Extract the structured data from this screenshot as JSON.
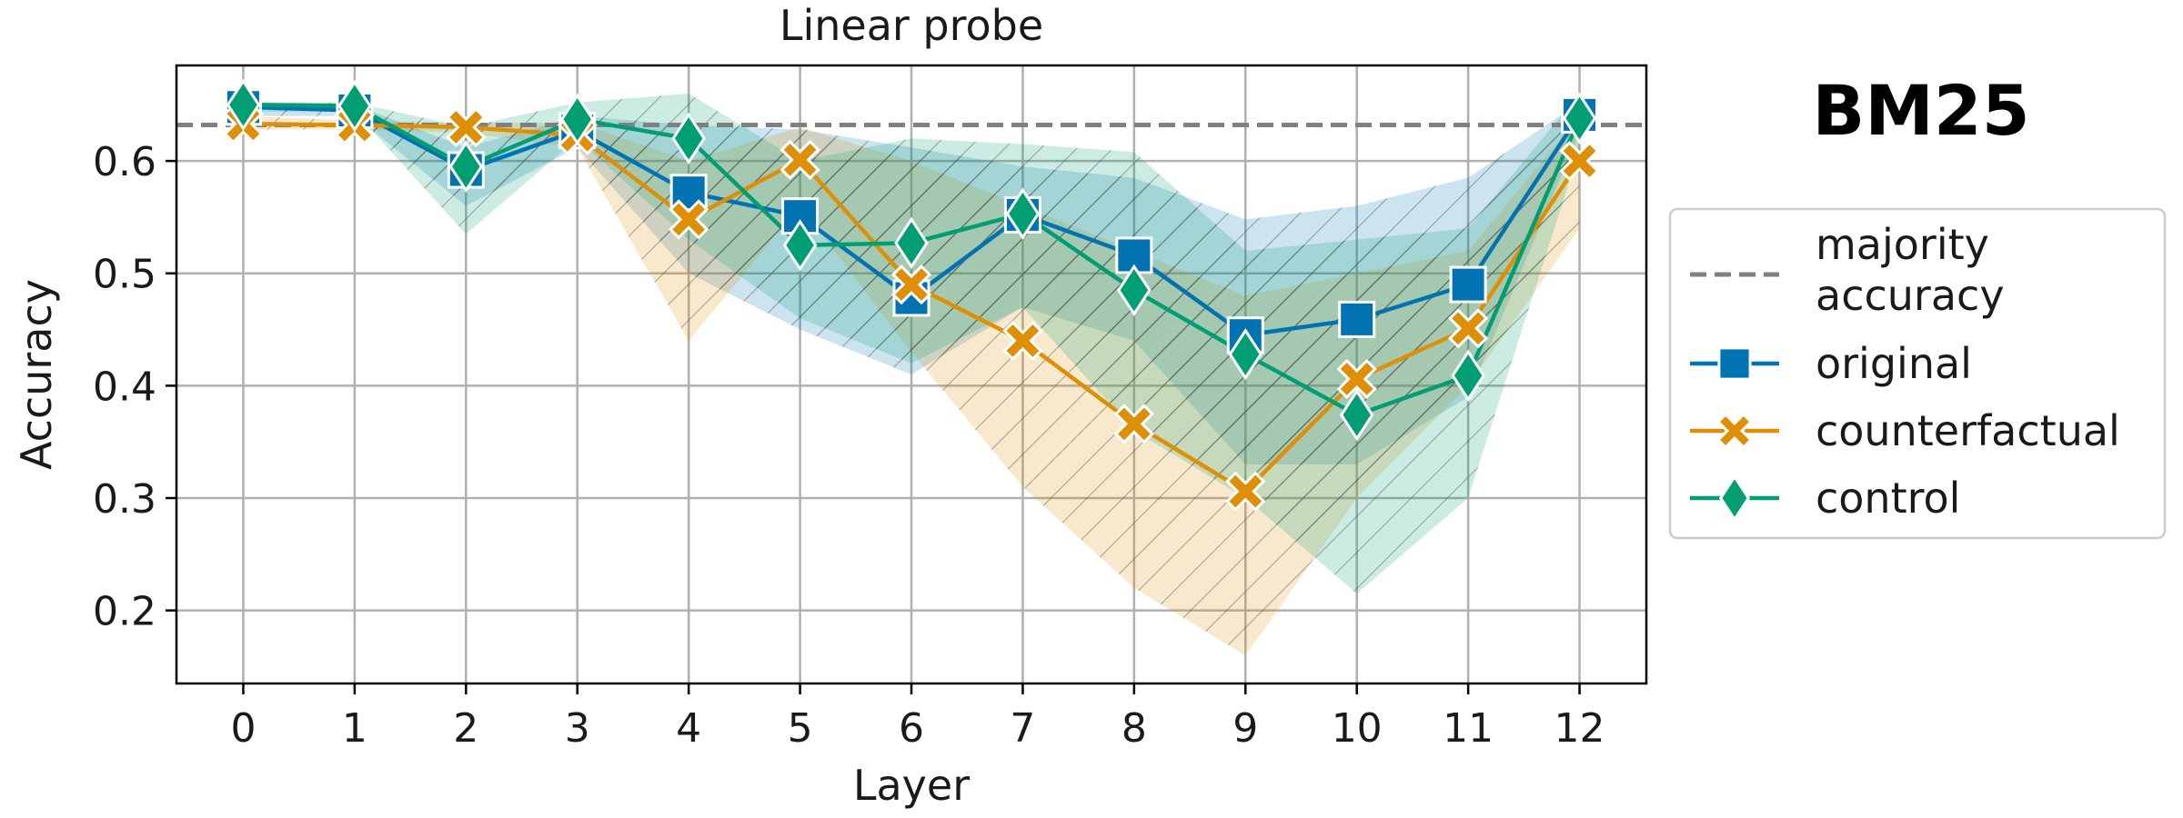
{
  "chart_data": {
    "type": "line",
    "title": "Linear probe",
    "annotation": "BM25",
    "xlabel": "Layer",
    "ylabel": "Accuracy",
    "x": [
      0,
      1,
      2,
      3,
      4,
      5,
      6,
      7,
      8,
      9,
      10,
      11,
      12
    ],
    "xlim": [
      -0.6,
      12.6
    ],
    "ylim": [
      0.135,
      0.685
    ],
    "yticks": [
      0.2,
      0.3,
      0.4,
      0.5,
      0.6
    ],
    "ytick_labels": [
      "0.2",
      "0.3",
      "0.4",
      "0.5",
      "0.6"
    ],
    "xtick_labels": [
      "0",
      "1",
      "2",
      "3",
      "4",
      "5",
      "6",
      "7",
      "8",
      "9",
      "10",
      "11",
      "12"
    ],
    "grid": true,
    "legend_position": "right",
    "majority_accuracy": {
      "name": "majority accuracy",
      "value": 0.632,
      "color": "#808080"
    },
    "series": [
      {
        "name": "original",
        "marker": "square",
        "color": "#0173b2",
        "values": [
          0.648,
          0.645,
          0.592,
          0.627,
          0.572,
          0.551,
          0.478,
          0.552,
          0.516,
          0.445,
          0.459,
          0.49,
          0.641
        ],
        "upper": [
          0.652,
          0.65,
          0.612,
          0.64,
          0.632,
          0.628,
          0.612,
          0.595,
          0.585,
          0.548,
          0.56,
          0.585,
          0.652
        ],
        "lower": [
          0.64,
          0.64,
          0.56,
          0.612,
          0.5,
          0.45,
          0.41,
          0.47,
          0.44,
          0.33,
          0.33,
          0.39,
          0.625
        ]
      },
      {
        "name": "counterfactual",
        "marker": "x",
        "color": "#de8f05",
        "values": [
          0.633,
          0.632,
          0.63,
          0.623,
          0.548,
          0.601,
          0.49,
          0.44,
          0.366,
          0.306,
          0.406,
          0.451,
          0.6
        ],
        "upper": [
          0.64,
          0.636,
          0.634,
          0.634,
          0.6,
          0.63,
          0.6,
          0.56,
          0.52,
          0.48,
          0.5,
          0.52,
          0.64
        ],
        "lower": [
          0.628,
          0.628,
          0.625,
          0.612,
          0.44,
          0.56,
          0.43,
          0.31,
          0.22,
          0.16,
          0.3,
          0.4,
          0.54
        ]
      },
      {
        "name": "control",
        "marker": "diamond",
        "color": "#029e73",
        "values": [
          0.65,
          0.649,
          0.595,
          0.637,
          0.62,
          0.525,
          0.527,
          0.553,
          0.485,
          0.428,
          0.374,
          0.409,
          0.638
        ],
        "upper": [
          0.652,
          0.652,
          0.63,
          0.652,
          0.66,
          0.6,
          0.62,
          0.615,
          0.608,
          0.52,
          0.53,
          0.54,
          0.66
        ],
        "lower": [
          0.644,
          0.644,
          0.535,
          0.62,
          0.53,
          0.46,
          0.42,
          0.47,
          0.36,
          0.3,
          0.215,
          0.3,
          0.61
        ]
      }
    ]
  }
}
